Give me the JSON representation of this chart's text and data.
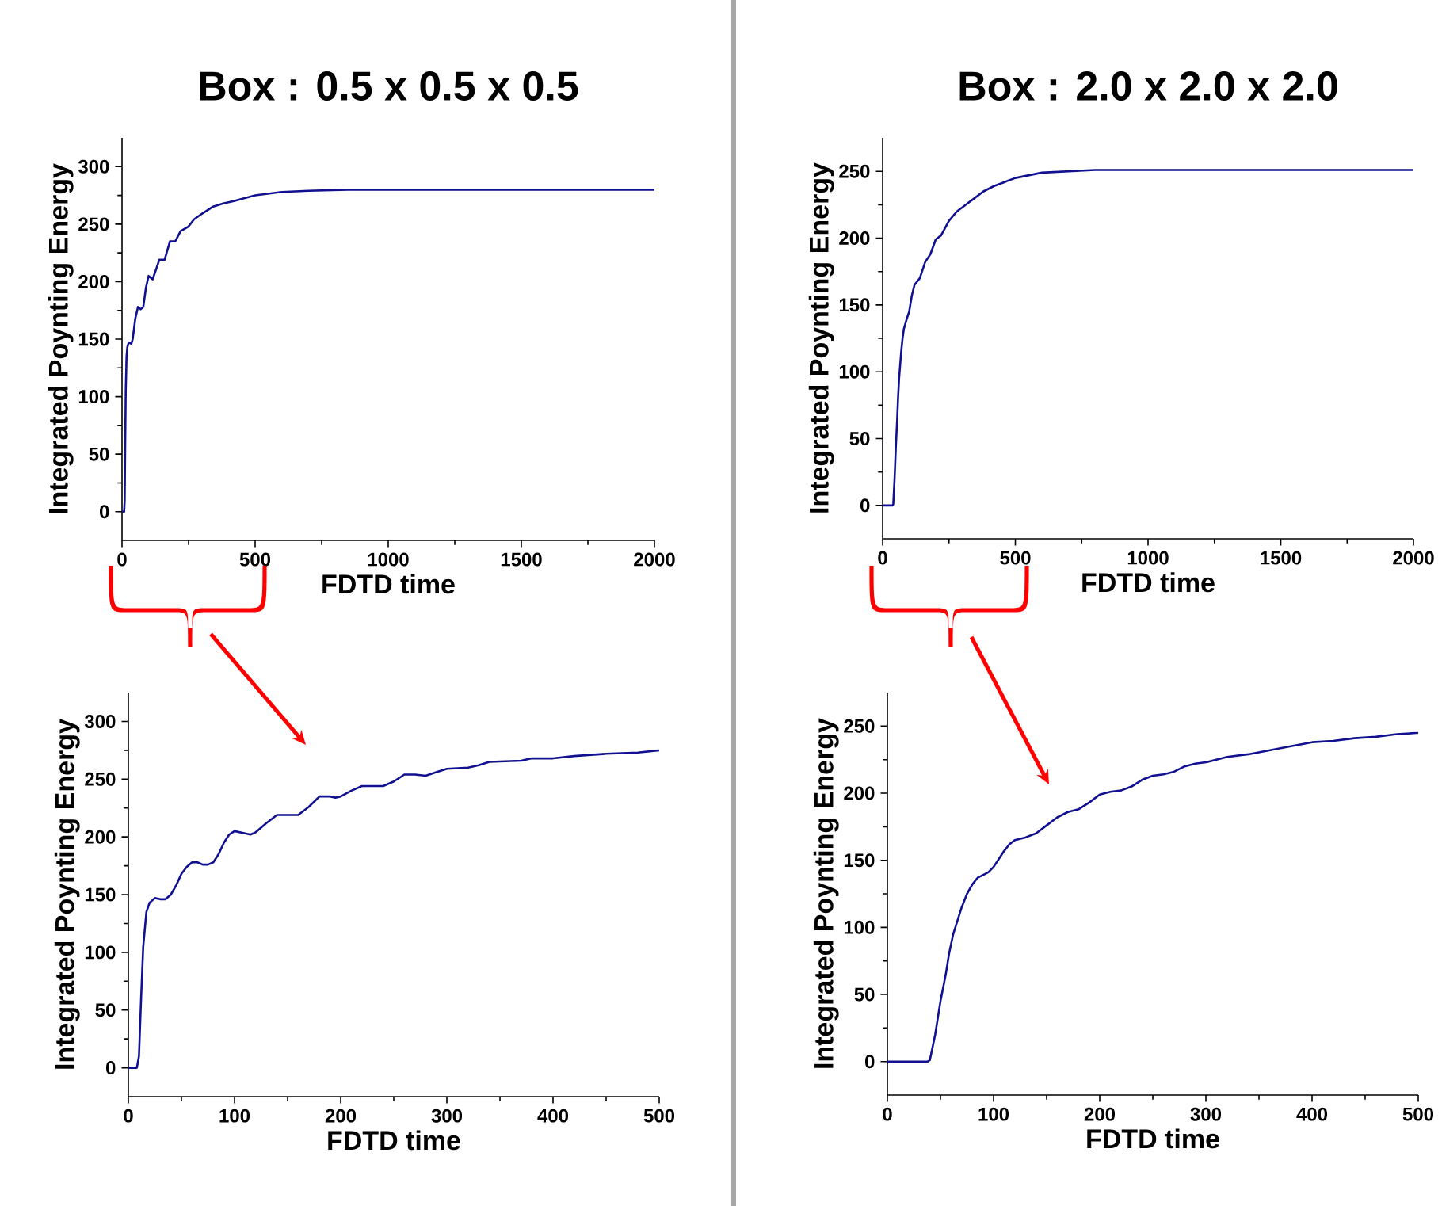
{
  "chart_data": [
    {
      "type": "line",
      "title": "Box : 0.5 x 0.5 x 0.5",
      "xlabel": "FDTD time",
      "ylabel": "Integrated Poynting Energy",
      "xlim": [
        0,
        2000
      ],
      "ylim": [
        -25,
        325
      ],
      "xticks": [
        0,
        500,
        1000,
        1500,
        2000
      ],
      "yticks": [
        0,
        50,
        100,
        150,
        200,
        250,
        300
      ],
      "grid": false,
      "series": [
        {
          "color": "#101090",
          "x": [
            0,
            8,
            10,
            12,
            14,
            17,
            20,
            25,
            35,
            40,
            50,
            60,
            70,
            80,
            90,
            100,
            115,
            130,
            140,
            160,
            180,
            200,
            220,
            250,
            270,
            300,
            340,
            380,
            420,
            450,
            500,
            600,
            700,
            850,
            1000,
            1500,
            2000
          ],
          "values": [
            0,
            0,
            10,
            60,
            105,
            135,
            143,
            147,
            146,
            150,
            168,
            178,
            176,
            178,
            195,
            205,
            202,
            212,
            219,
            219,
            235,
            235,
            244,
            248,
            254,
            259,
            265,
            268,
            270,
            272,
            275,
            278,
            279,
            280,
            280,
            280,
            280
          ]
        }
      ]
    },
    {
      "type": "line",
      "title": "Box : 2.0 x 2.0 x 2.0",
      "xlabel": "FDTD time",
      "ylabel": "Integrated Poynting Energy",
      "xlim": [
        0,
        2000
      ],
      "ylim": [
        -25,
        275
      ],
      "xticks": [
        0,
        500,
        1000,
        1500,
        2000
      ],
      "yticks": [
        0,
        50,
        100,
        150,
        200,
        250
      ],
      "grid": false,
      "series": [
        {
          "color": "#101090",
          "x": [
            0,
            38,
            40,
            45,
            50,
            55,
            58,
            62,
            66,
            70,
            75,
            80,
            90,
            100,
            110,
            120,
            140,
            160,
            180,
            200,
            220,
            250,
            280,
            300,
            340,
            380,
            420,
            460,
            500,
            600,
            700,
            800,
            1000,
            1500,
            2000
          ],
          "values": [
            0,
            0,
            1,
            20,
            45,
            65,
            80,
            95,
            105,
            115,
            125,
            132,
            139,
            145,
            157,
            165,
            170,
            182,
            188,
            199,
            202,
            213,
            220,
            223,
            229,
            235,
            239,
            242,
            245,
            249,
            250,
            251,
            251,
            251,
            251
          ]
        }
      ]
    },
    {
      "type": "line",
      "xlabel": "FDTD time",
      "ylabel": "Integrated Poynting Energy",
      "xlim": [
        0,
        500
      ],
      "ylim": [
        -25,
        325
      ],
      "xticks": [
        0,
        100,
        200,
        300,
        400,
        500
      ],
      "yticks": [
        0,
        50,
        100,
        150,
        200,
        250,
        300
      ],
      "grid": false,
      "series": [
        {
          "color": "#101090",
          "x": [
            0,
            8,
            10,
            12,
            14,
            17,
            20,
            25,
            30,
            35,
            40,
            45,
            50,
            55,
            60,
            65,
            70,
            75,
            80,
            85,
            90,
            95,
            100,
            110,
            115,
            120,
            130,
            140,
            150,
            160,
            170,
            180,
            190,
            195,
            200,
            210,
            220,
            240,
            250,
            260,
            270,
            280,
            290,
            300,
            320,
            330,
            340,
            370,
            380,
            400,
            420,
            450,
            480,
            500
          ],
          "values": [
            0,
            0,
            10,
            60,
            105,
            135,
            143,
            147,
            146,
            146,
            150,
            158,
            168,
            174,
            178,
            178,
            176,
            176,
            178,
            185,
            195,
            202,
            205,
            203,
            202,
            204,
            212,
            219,
            219,
            219,
            226,
            235,
            235,
            234,
            235,
            240,
            244,
            244,
            248,
            254,
            254,
            253,
            256,
            259,
            260,
            262,
            265,
            266,
            268,
            268,
            270,
            272,
            273,
            275
          ]
        }
      ]
    },
    {
      "type": "line",
      "xlabel": "FDTD time",
      "ylabel": "Integrated Poynting Energy",
      "xlim": [
        0,
        500
      ],
      "ylim": [
        -25,
        275
      ],
      "xticks": [
        0,
        100,
        200,
        300,
        400,
        500
      ],
      "yticks": [
        0,
        50,
        100,
        150,
        200,
        250
      ],
      "grid": false,
      "series": [
        {
          "color": "#101090",
          "x": [
            0,
            38,
            40,
            45,
            50,
            55,
            58,
            62,
            66,
            70,
            75,
            80,
            85,
            90,
            95,
            100,
            105,
            110,
            115,
            120,
            130,
            140,
            150,
            160,
            170,
            180,
            190,
            200,
            210,
            220,
            230,
            240,
            250,
            260,
            270,
            280,
            290,
            300,
            320,
            340,
            360,
            380,
            400,
            420,
            440,
            460,
            480,
            500
          ],
          "values": [
            0,
            0,
            1,
            20,
            45,
            65,
            80,
            95,
            105,
            115,
            125,
            132,
            137,
            139,
            141,
            145,
            151,
            157,
            162,
            165,
            167,
            170,
            176,
            182,
            186,
            188,
            193,
            199,
            201,
            202,
            205,
            210,
            213,
            214,
            216,
            220,
            222,
            223,
            227,
            229,
            232,
            235,
            238,
            239,
            241,
            242,
            244,
            245
          ]
        }
      ]
    }
  ]
}
